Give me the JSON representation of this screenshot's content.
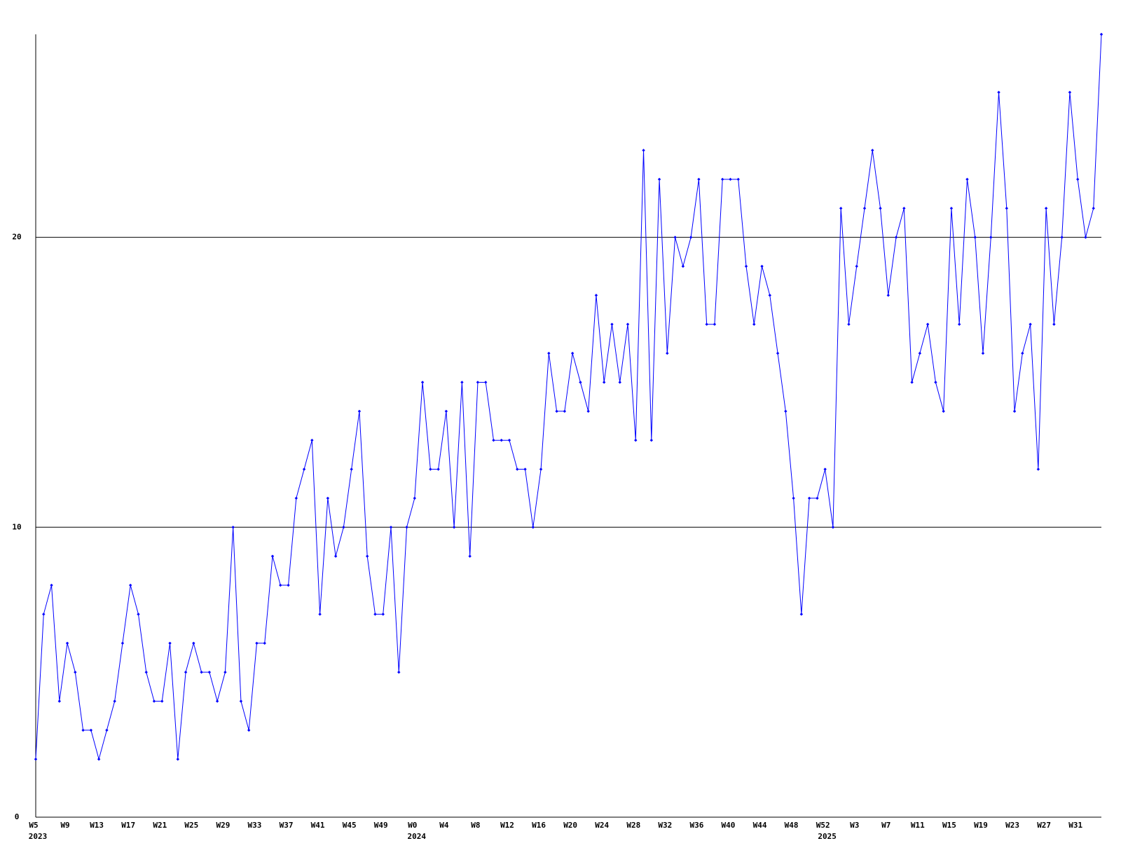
{
  "chart_data": {
    "type": "line",
    "color": "#0000ff",
    "grid": true,
    "ylim": [
      0,
      27
    ],
    "yticks": [
      0,
      10,
      20
    ],
    "categories": [
      {
        "label": "W5",
        "year": "2023"
      },
      null,
      null,
      null,
      "W9",
      null,
      null,
      null,
      "W13",
      null,
      null,
      null,
      "W17",
      null,
      null,
      null,
      "W21",
      null,
      null,
      null,
      "W25",
      null,
      null,
      null,
      "W29",
      null,
      null,
      null,
      "W33",
      null,
      null,
      null,
      "W37",
      null,
      null,
      null,
      "W41",
      null,
      null,
      null,
      "W45",
      null,
      null,
      null,
      "W49",
      null,
      null,
      null,
      {
        "label": "W0",
        "year": "2024"
      },
      null,
      null,
      null,
      "W4",
      null,
      null,
      null,
      "W8",
      null,
      null,
      null,
      "W12",
      null,
      null,
      null,
      "W16",
      null,
      null,
      null,
      "W20",
      null,
      null,
      null,
      "W24",
      null,
      null,
      null,
      "W28",
      null,
      null,
      null,
      "W32",
      null,
      null,
      null,
      "W36",
      null,
      null,
      null,
      "W40",
      null,
      null,
      null,
      "W44",
      null,
      null,
      null,
      "W48",
      null,
      null,
      null,
      {
        "label": "W52",
        "year": "2025"
      },
      null,
      null,
      null,
      "W3",
      null,
      null,
      null,
      "W7",
      null,
      null,
      null,
      "W11",
      null,
      null,
      null,
      "W15",
      null,
      null,
      null,
      "W19",
      null,
      null,
      null,
      "W23",
      null,
      null,
      null,
      "W27",
      null,
      null,
      null,
      "W31",
      null,
      null,
      null
    ],
    "values": [
      2,
      7,
      8,
      4,
      6,
      5,
      3,
      3,
      2,
      3,
      4,
      6,
      8,
      7,
      5,
      4,
      4,
      6,
      2,
      5,
      6,
      5,
      5,
      4,
      5,
      10,
      4,
      3,
      6,
      6,
      9,
      8,
      8,
      11,
      12,
      13,
      7,
      11,
      9,
      10,
      12,
      14,
      9,
      7,
      7,
      10,
      5,
      10,
      11,
      15,
      12,
      12,
      14,
      10,
      15,
      9,
      15,
      15,
      13,
      13,
      13,
      12,
      12,
      10,
      12,
      16,
      14,
      14,
      16,
      15,
      14,
      18,
      15,
      17,
      15,
      17,
      13,
      23,
      13,
      22,
      16,
      20,
      19,
      20,
      22,
      17,
      17,
      22,
      22,
      22,
      19,
      17,
      19,
      18,
      16,
      14,
      11,
      7,
      11,
      11,
      12,
      10,
      21,
      17,
      19,
      21,
      23,
      21,
      18,
      20,
      21,
      15,
      16,
      17,
      15,
      14,
      21,
      17,
      22,
      20,
      16,
      20,
      25,
      21,
      14,
      16,
      17,
      12,
      21,
      17,
      20,
      25,
      22,
      20,
      21,
      27
    ]
  }
}
